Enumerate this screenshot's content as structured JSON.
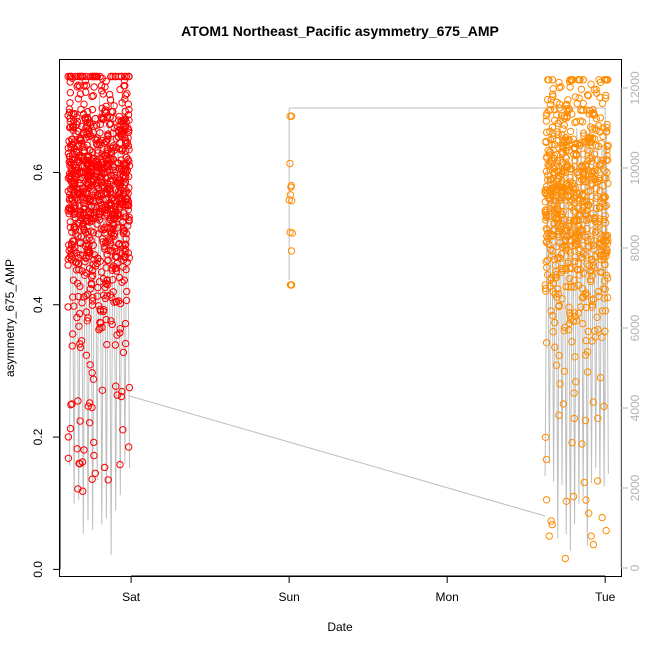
{
  "chart_data": {
    "type": "scatter",
    "title": "ATOM1 Northeast_Pacific asymmetry_675_AMP",
    "xlabel": "Date",
    "ylabel": "asymmetry_675_AMP",
    "x_ticks": [
      "Sat",
      "Sun",
      "Mon",
      "Tue"
    ],
    "x_range_days": [
      -0.45,
      3.1
    ],
    "ylim": [
      -0.01,
      0.77
    ],
    "y_ticks": [
      0.0,
      0.2,
      0.4,
      0.6
    ],
    "y2lim": [
      -200,
      12700
    ],
    "y2_ticks": [
      0,
      2000,
      4000,
      6000,
      8000,
      10000,
      12000
    ],
    "grid": false,
    "legend": "none",
    "colors": {
      "series_red": "#ff0000",
      "series_orange": "#ff8c00",
      "secondary_line": "#bebebe",
      "right_axis": "#b3b3b3"
    },
    "series": [
      {
        "color": "series_red",
        "marker": "open-circle",
        "clusters": [
          {
            "x_start": -0.4,
            "x_end": -0.01,
            "y_center": 0.58,
            "y_spread": 0.09,
            "y_min": 0.11,
            "y_max": 0.745,
            "count": 900
          }
        ]
      },
      {
        "color": "series_orange",
        "marker": "open-circle",
        "clusters": [
          {
            "x_start": 1.0,
            "x_end": 1.02,
            "y_center": 0.55,
            "y_spread": 0.1,
            "y_min": 0.43,
            "y_max": 0.685,
            "count": 14
          },
          {
            "x_start": 2.62,
            "x_end": 3.02,
            "y_center": 0.56,
            "y_spread": 0.1,
            "y_min": 0.01,
            "y_max": 0.74,
            "count": 700
          }
        ]
      },
      {
        "type": "line",
        "axis": "right",
        "color": "secondary_line",
        "description_points": [
          {
            "x": -0.38,
            "y2": 1500
          },
          {
            "x": -0.01,
            "y2": 12000
          },
          {
            "x": 0.0,
            "y2": 4300
          },
          {
            "x": 2.62,
            "y2": 1500
          },
          {
            "x": 2.62,
            "y2": 11500
          },
          {
            "x": 1.0,
            "y2": 11500
          },
          {
            "x": 1.0,
            "y2": 7200
          },
          {
            "x": 3.0,
            "y2": 11500
          },
          {
            "x": 3.0,
            "y2": 4000
          }
        ]
      }
    ]
  }
}
